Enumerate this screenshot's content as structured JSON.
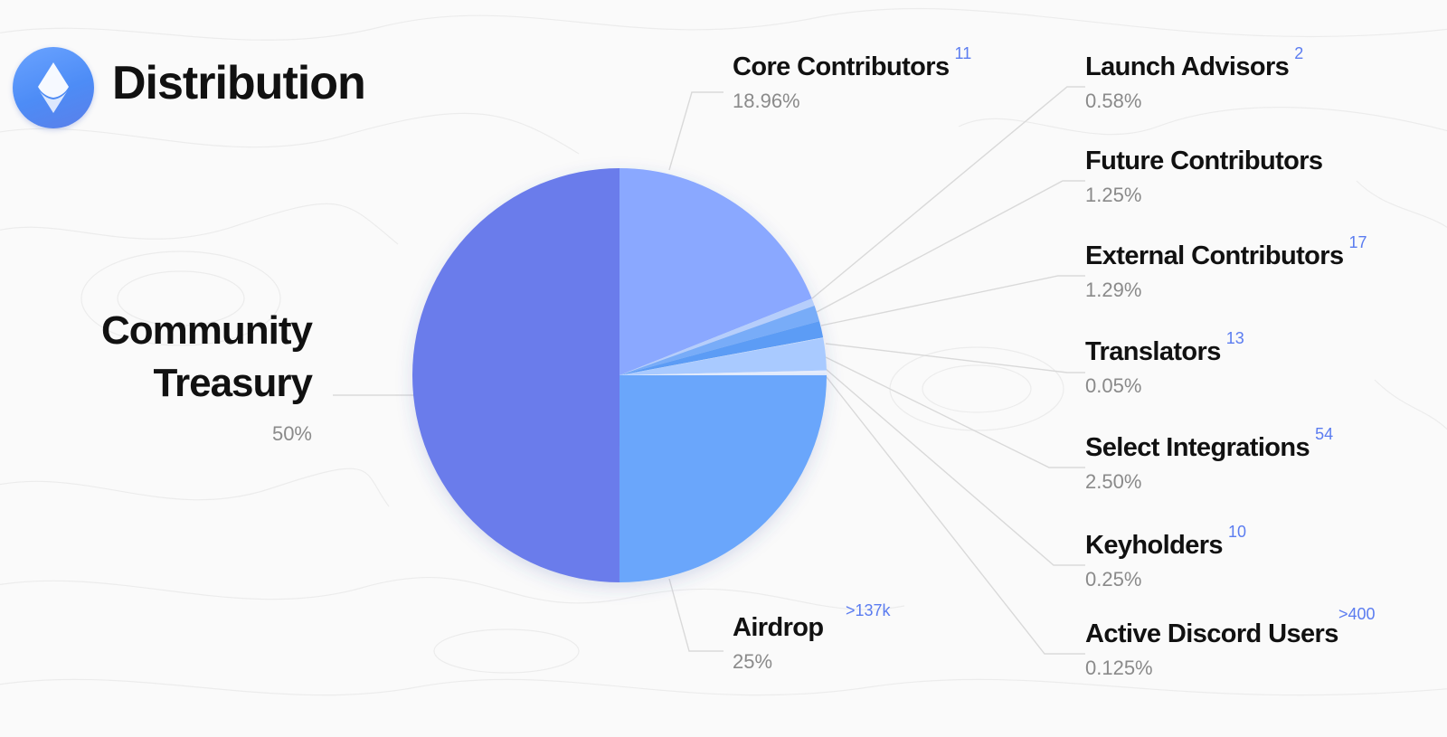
{
  "header": {
    "title": "Distribution",
    "logo_icon": "ens-logo-icon"
  },
  "colors": {
    "treasury": "#6b7ceb",
    "airdrop": "#6aa6fb",
    "core": "#8aa8ff",
    "active_discord": "#dde8fb",
    "keyholders": "#e4ecfc",
    "select_integrations": "#a9caff",
    "translators": "#c9dcfc",
    "external": "#5c9cf5",
    "future": "#78acf8",
    "launch": "#b6cefb",
    "count": "#5b7cf0",
    "percent_text": "#8a8a8a"
  },
  "labels": {
    "community_treasury": {
      "line1": "Community",
      "line2": "Treasury",
      "pct": "50%"
    },
    "core_contributors": {
      "name": "Core Contributors",
      "count": "11",
      "pct": "18.96%"
    },
    "airdrop": {
      "name": "Airdrop",
      "count": ">137k",
      "pct": "25%"
    },
    "launch_advisors": {
      "name": "Launch Advisors",
      "count": "2",
      "pct": "0.58%"
    },
    "future_contributors": {
      "name": "Future Contributors",
      "pct": "1.25%"
    },
    "external_contributors": {
      "name": "External Contributors",
      "count": "17",
      "pct": "1.29%"
    },
    "translators": {
      "name": "Translators",
      "count": "13",
      "pct": "0.05%"
    },
    "select_integrations": {
      "name": "Select Integrations",
      "count": "54",
      "pct": "2.50%"
    },
    "keyholders": {
      "name": "Keyholders",
      "count": "10",
      "pct": "0.25%"
    },
    "active_discord_users": {
      "name": "Active Discord Users",
      "count": ">400",
      "pct": "0.125%"
    }
  },
  "chart_data": {
    "type": "pie",
    "title": "Distribution",
    "slices": [
      {
        "label": "Core Contributors",
        "value": 18.96,
        "color": "#8aa8ff"
      },
      {
        "label": "Launch Advisors",
        "value": 0.58,
        "color": "#b6cefb"
      },
      {
        "label": "Future Contributors",
        "value": 1.25,
        "color": "#78acf8"
      },
      {
        "label": "External Contributors",
        "value": 1.29,
        "color": "#5c9cf5"
      },
      {
        "label": "Translators",
        "value": 0.05,
        "color": "#c9dcfc"
      },
      {
        "label": "Select Integrations",
        "value": 2.5,
        "color": "#a9caff"
      },
      {
        "label": "Keyholders",
        "value": 0.25,
        "color": "#e4ecfc"
      },
      {
        "label": "Active Discord Users",
        "value": 0.125,
        "color": "#dde8fb"
      },
      {
        "label": "Airdrop",
        "value": 25,
        "color": "#6aa6fb"
      },
      {
        "label": "Community Treasury",
        "value": 50,
        "color": "#6b7ceb"
      }
    ],
    "start": "12 o'clock",
    "direction": "clockwise"
  }
}
